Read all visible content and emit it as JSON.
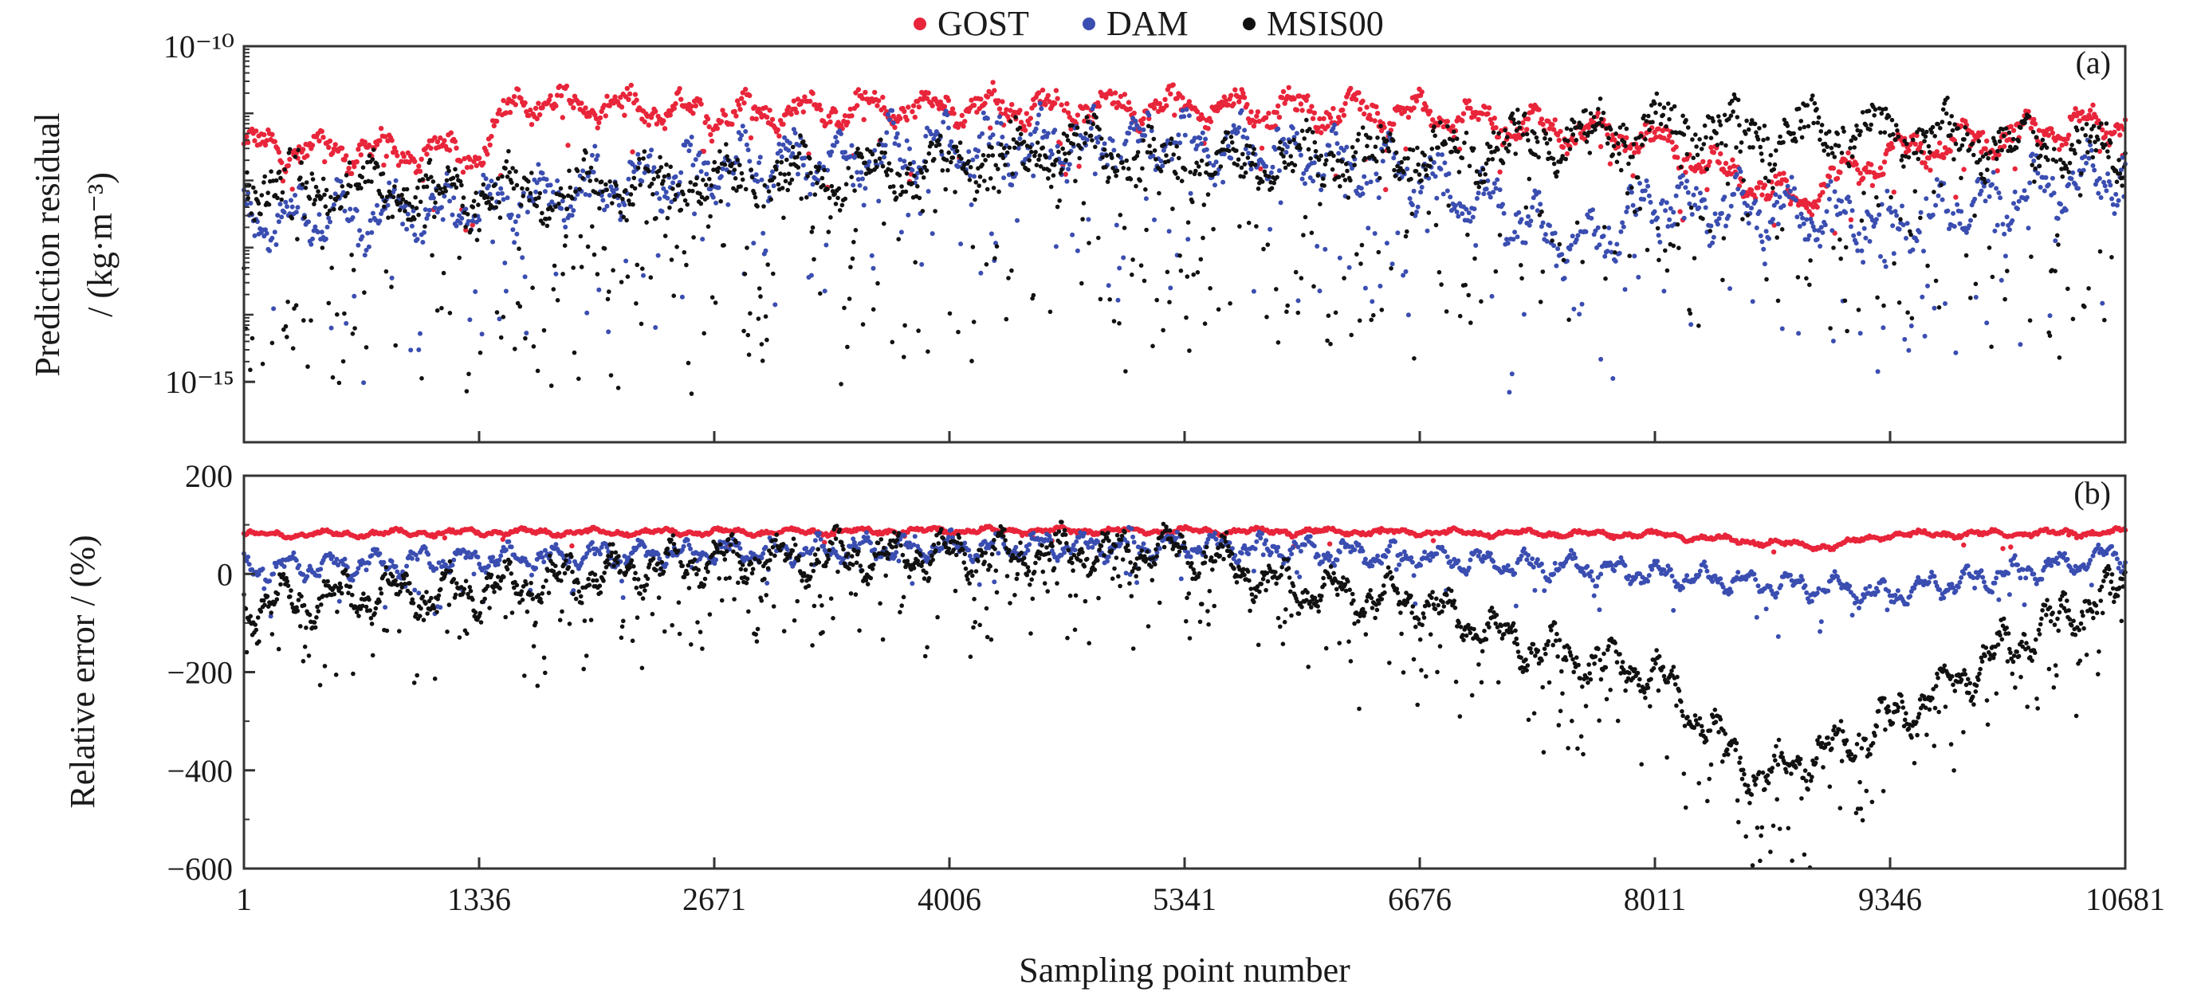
{
  "legend": {
    "entries": [
      {
        "label": "GOST",
        "color": "#e8253a"
      },
      {
        "label": "DAM",
        "color": "#3a4db0"
      },
      {
        "label": "MSIS00",
        "color": "#111111"
      }
    ]
  },
  "chart_data": [
    {
      "type": "scatter",
      "panel_label": "(a)",
      "ylabel_line1": "Prediction residual",
      "ylabel_line2": "/ (kg·m⁻³)",
      "xlabel": "",
      "y_scale": "log",
      "ylim_exponent": [
        -15.9,
        -10
      ],
      "y_ticks": [
        {
          "value_exponent": -10,
          "label": "10⁻¹⁰"
        },
        {
          "value_exponent": -15,
          "label": "10⁻¹⁵"
        }
      ],
      "series": [
        {
          "name": "GOST",
          "color": "#e8253a",
          "approx_log10": [
            {
              "x": 1,
              "y": -11.5
            },
            {
              "x": 1336,
              "y": -11.6
            },
            {
              "x": 1550,
              "y": -10.8
            },
            {
              "x": 2671,
              "y": -11.0
            },
            {
              "x": 4006,
              "y": -10.9
            },
            {
              "x": 5341,
              "y": -10.9
            },
            {
              "x": 6676,
              "y": -11.0
            },
            {
              "x": 8011,
              "y": -11.4
            },
            {
              "x": 8800,
              "y": -12.3
            },
            {
              "x": 9346,
              "y": -11.6
            },
            {
              "x": 10681,
              "y": -11.1
            }
          ]
        },
        {
          "name": "DAM",
          "color": "#3a4db0",
          "approx_log10": [
            {
              "x": 1,
              "y": -12.6
            },
            {
              "x": 1336,
              "y": -12.4
            },
            {
              "x": 2671,
              "y": -11.8
            },
            {
              "x": 4006,
              "y": -11.5
            },
            {
              "x": 5341,
              "y": -11.4
            },
            {
              "x": 6676,
              "y": -11.9
            },
            {
              "x": 7600,
              "y": -13.0
            },
            {
              "x": 8011,
              "y": -12.3
            },
            {
              "x": 9346,
              "y": -12.6
            },
            {
              "x": 10681,
              "y": -11.9
            }
          ]
        },
        {
          "name": "MSIS00",
          "color": "#111111",
          "approx_log10": [
            {
              "x": 1,
              "y": -12.0
            },
            {
              "x": 1336,
              "y": -12.2
            },
            {
              "x": 2671,
              "y": -12.0
            },
            {
              "x": 4006,
              "y": -11.8
            },
            {
              "x": 4700,
              "y": -11.5
            },
            {
              "x": 5341,
              "y": -11.8
            },
            {
              "x": 6676,
              "y": -11.6
            },
            {
              "x": 8011,
              "y": -11.2
            },
            {
              "x": 9346,
              "y": -11.3
            },
            {
              "x": 10681,
              "y": -11.6
            }
          ]
        }
      ]
    },
    {
      "type": "scatter",
      "panel_label": "(b)",
      "ylabel": "Relative error / (%)",
      "xlabel": "Sampling point number",
      "ylim": [
        -600,
        200
      ],
      "y_ticks": [
        200,
        0,
        -200,
        -400,
        -600
      ],
      "x_ticks": [
        1,
        1336,
        2671,
        4006,
        5341,
        6676,
        8011,
        9346,
        10681
      ],
      "xlim": [
        1,
        10681
      ],
      "series": [
        {
          "name": "GOST",
          "color": "#e8253a",
          "approx": [
            {
              "x": 1,
              "y": 80
            },
            {
              "x": 1336,
              "y": 85
            },
            {
              "x": 2671,
              "y": 85
            },
            {
              "x": 4006,
              "y": 88
            },
            {
              "x": 5341,
              "y": 88
            },
            {
              "x": 6676,
              "y": 85
            },
            {
              "x": 8011,
              "y": 80
            },
            {
              "x": 9000,
              "y": 55
            },
            {
              "x": 9346,
              "y": 80
            },
            {
              "x": 10681,
              "y": 85
            }
          ]
        },
        {
          "name": "DAM",
          "color": "#3a4db0",
          "approx": [
            {
              "x": 1,
              "y": 10
            },
            {
              "x": 1336,
              "y": 30
            },
            {
              "x": 2671,
              "y": 45
            },
            {
              "x": 4006,
              "y": 55
            },
            {
              "x": 5341,
              "y": 60
            },
            {
              "x": 6676,
              "y": 35
            },
            {
              "x": 8011,
              "y": 0
            },
            {
              "x": 9346,
              "y": -40
            },
            {
              "x": 10681,
              "y": 40
            }
          ]
        },
        {
          "name": "MSIS00",
          "color": "#111111",
          "approx": [
            {
              "x": 1,
              "y": -60
            },
            {
              "x": 1336,
              "y": -30
            },
            {
              "x": 2671,
              "y": 30
            },
            {
              "x": 4006,
              "y": 40
            },
            {
              "x": 5341,
              "y": 50
            },
            {
              "x": 6000,
              "y": -30
            },
            {
              "x": 6676,
              "y": -60
            },
            {
              "x": 7300,
              "y": -150
            },
            {
              "x": 8011,
              "y": -200
            },
            {
              "x": 8600,
              "y": -420
            },
            {
              "x": 9346,
              "y": -300
            },
            {
              "x": 10000,
              "y": -150
            },
            {
              "x": 10681,
              "y": -20
            }
          ]
        }
      ]
    }
  ]
}
